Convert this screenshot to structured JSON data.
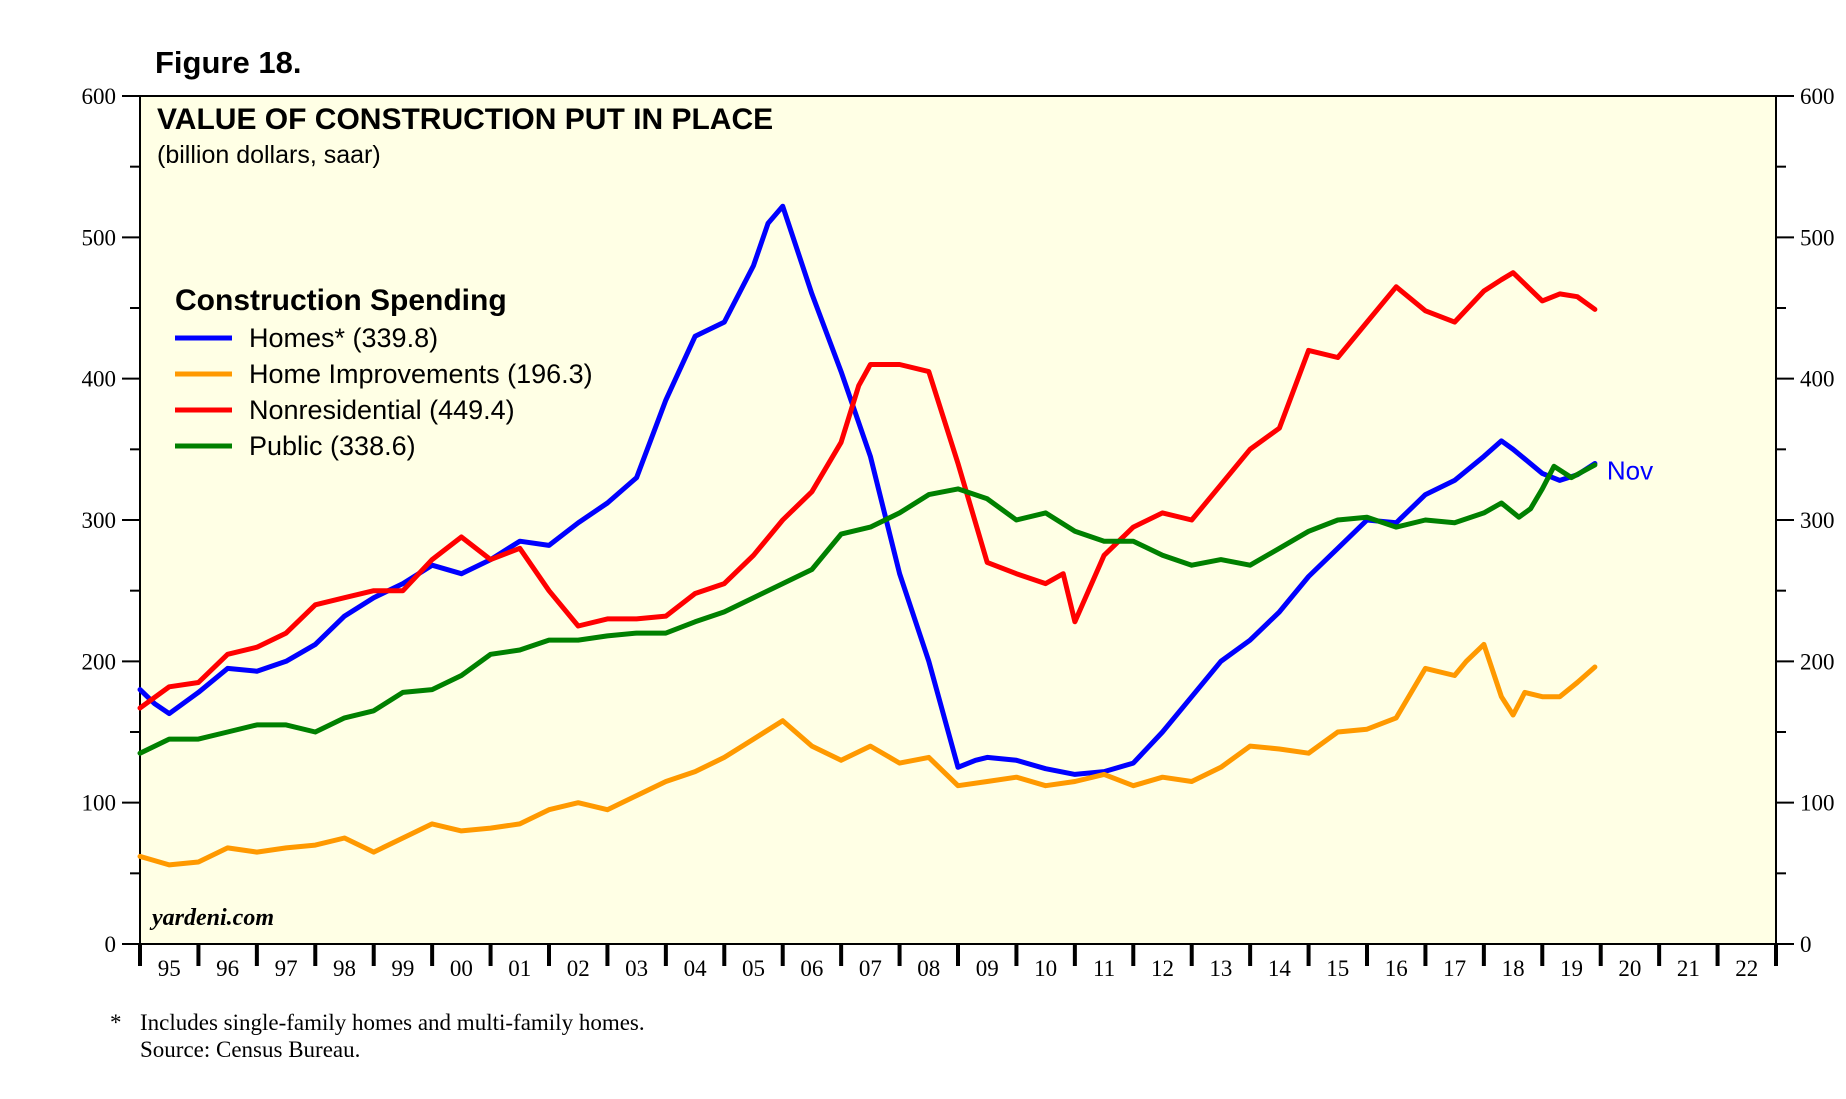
{
  "figure_label": "Figure 18.",
  "footnote": {
    "marker": "*",
    "line1": "Includes single-family homes and multi-family homes.",
    "line2": "Source: Census Bureau."
  },
  "watermark": "yardeni.com",
  "colors": {
    "plot_background": "#ffffe5",
    "homes": "#0000ff",
    "home_improvements": "#ff9900",
    "nonresidential": "#ff0000",
    "public": "#008000"
  },
  "chart_data": {
    "type": "line",
    "title": "VALUE OF CONSTRUCTION PUT IN PLACE",
    "subtitle": "(billion dollars, saar)",
    "legend_title": "Construction Spending",
    "legend_position": "top-left",
    "ylabel": "billion dollars, saar",
    "ylim": [
      0,
      600
    ],
    "y_ticks": [
      0,
      100,
      200,
      300,
      400,
      500,
      600
    ],
    "xlim": [
      1995,
      2023
    ],
    "x_tick_labels": [
      "95",
      "96",
      "97",
      "98",
      "99",
      "00",
      "01",
      "02",
      "03",
      "04",
      "05",
      "06",
      "07",
      "08",
      "09",
      "10",
      "11",
      "12",
      "13",
      "14",
      "15",
      "16",
      "17",
      "18",
      "19",
      "20",
      "21",
      "22"
    ],
    "end_annotation": "Nov",
    "series": [
      {
        "name": "Homes*",
        "legend": "Homes* (339.8)",
        "latest": 339.8,
        "color": "#0000ff",
        "x": [
          1995.0,
          1995.25,
          1995.5,
          1996.0,
          1996.5,
          1997.0,
          1997.5,
          1998.0,
          1998.5,
          1999.0,
          1999.5,
          2000.0,
          2000.5,
          2001.0,
          2001.5,
          2002.0,
          2002.5,
          2003.0,
          2003.5,
          2004.0,
          2004.5,
          2005.0,
          2005.5,
          2005.75,
          2006.0,
          2006.5,
          2007.0,
          2007.5,
          2008.0,
          2008.5,
          2009.0,
          2009.3,
          2009.5,
          2010.0,
          2010.5,
          2011.0,
          2011.5,
          2012.0,
          2012.5,
          2013.0,
          2013.5,
          2014.0,
          2014.5,
          2015.0,
          2015.5,
          2016.0,
          2016.5,
          2017.0,
          2017.5,
          2018.0,
          2018.3,
          2018.5,
          2019.0,
          2019.3,
          2019.6,
          2019.9
        ],
        "y": [
          180,
          170,
          163,
          178,
          195,
          193,
          200,
          212,
          232,
          245,
          255,
          268,
          262,
          272,
          285,
          282,
          298,
          312,
          330,
          385,
          430,
          440,
          480,
          510,
          522,
          460,
          405,
          345,
          262,
          200,
          125,
          130,
          132,
          130,
          124,
          120,
          122,
          128,
          150,
          175,
          200,
          215,
          235,
          260,
          280,
          300,
          298,
          318,
          328,
          345,
          356,
          350,
          333,
          328,
          332,
          340
        ]
      },
      {
        "name": "Home Improvements",
        "legend": "Home Improvements (196.3)",
        "latest": 196.3,
        "color": "#ff9900",
        "x": [
          1995.0,
          1995.5,
          1996.0,
          1996.5,
          1997.0,
          1997.5,
          1998.0,
          1998.5,
          1999.0,
          1999.5,
          2000.0,
          2000.5,
          2001.0,
          2001.5,
          2002.0,
          2002.5,
          2003.0,
          2003.5,
          2004.0,
          2004.5,
          2005.0,
          2005.5,
          2006.0,
          2006.5,
          2007.0,
          2007.5,
          2008.0,
          2008.5,
          2009.0,
          2009.5,
          2010.0,
          2010.5,
          2011.0,
          2011.5,
          2012.0,
          2012.5,
          2013.0,
          2013.5,
          2014.0,
          2014.5,
          2015.0,
          2015.5,
          2016.0,
          2016.5,
          2017.0,
          2017.5,
          2017.7,
          2018.0,
          2018.3,
          2018.5,
          2018.7,
          2019.0,
          2019.3,
          2019.6,
          2019.9
        ],
        "y": [
          62,
          56,
          58,
          68,
          65,
          68,
          70,
          75,
          65,
          75,
          85,
          80,
          82,
          85,
          95,
          100,
          95,
          105,
          115,
          122,
          132,
          145,
          158,
          140,
          130,
          140,
          128,
          132,
          112,
          115,
          118,
          112,
          115,
          120,
          112,
          118,
          115,
          125,
          140,
          138,
          135,
          150,
          152,
          160,
          195,
          190,
          200,
          212,
          175,
          162,
          178,
          175,
          175,
          185,
          196
        ]
      },
      {
        "name": "Nonresidential",
        "legend": "Nonresidential (449.4)",
        "latest": 449.4,
        "color": "#ff0000",
        "x": [
          1995.0,
          1995.5,
          1996.0,
          1996.5,
          1997.0,
          1997.5,
          1998.0,
          1998.5,
          1999.0,
          1999.5,
          2000.0,
          2000.5,
          2001.0,
          2001.5,
          2002.0,
          2002.5,
          2003.0,
          2003.5,
          2004.0,
          2004.5,
          2005.0,
          2005.5,
          2006.0,
          2006.5,
          2007.0,
          2007.3,
          2007.5,
          2008.0,
          2008.5,
          2009.0,
          2009.5,
          2010.0,
          2010.5,
          2010.8,
          2011.0,
          2011.5,
          2012.0,
          2012.5,
          2013.0,
          2013.5,
          2014.0,
          2014.5,
          2015.0,
          2015.5,
          2016.0,
          2016.5,
          2017.0,
          2017.5,
          2018.0,
          2018.3,
          2018.5,
          2019.0,
          2019.3,
          2019.6,
          2019.9
        ],
        "y": [
          167,
          182,
          185,
          205,
          210,
          220,
          240,
          245,
          250,
          250,
          272,
          288,
          272,
          280,
          250,
          225,
          230,
          230,
          232,
          248,
          255,
          275,
          300,
          320,
          355,
          395,
          410,
          410,
          405,
          340,
          270,
          262,
          255,
          262,
          228,
          275,
          295,
          305,
          300,
          325,
          350,
          365,
          420,
          415,
          440,
          465,
          448,
          440,
          462,
          470,
          475,
          455,
          460,
          458,
          449
        ]
      },
      {
        "name": "Public",
        "legend": "Public (338.6)",
        "latest": 338.6,
        "color": "#008000",
        "x": [
          1995.0,
          1995.5,
          1996.0,
          1996.5,
          1997.0,
          1997.5,
          1998.0,
          1998.5,
          1999.0,
          1999.5,
          2000.0,
          2000.5,
          2001.0,
          2001.5,
          2002.0,
          2002.5,
          2003.0,
          2003.5,
          2004.0,
          2004.5,
          2005.0,
          2005.5,
          2006.0,
          2006.5,
          2007.0,
          2007.5,
          2008.0,
          2008.5,
          2009.0,
          2009.5,
          2010.0,
          2010.5,
          2011.0,
          2011.5,
          2012.0,
          2012.5,
          2013.0,
          2013.5,
          2014.0,
          2014.5,
          2015.0,
          2015.5,
          2016.0,
          2016.5,
          2017.0,
          2017.5,
          2018.0,
          2018.3,
          2018.6,
          2018.8,
          2019.0,
          2019.2,
          2019.5,
          2019.9
        ],
        "y": [
          135,
          145,
          145,
          150,
          155,
          155,
          150,
          160,
          165,
          178,
          180,
          190,
          205,
          208,
          215,
          215,
          218,
          220,
          220,
          228,
          235,
          245,
          255,
          265,
          290,
          295,
          305,
          318,
          322,
          315,
          300,
          305,
          292,
          285,
          285,
          275,
          268,
          272,
          268,
          280,
          292,
          300,
          302,
          295,
          300,
          298,
          305,
          312,
          302,
          308,
          322,
          338,
          330,
          339
        ]
      }
    ]
  }
}
